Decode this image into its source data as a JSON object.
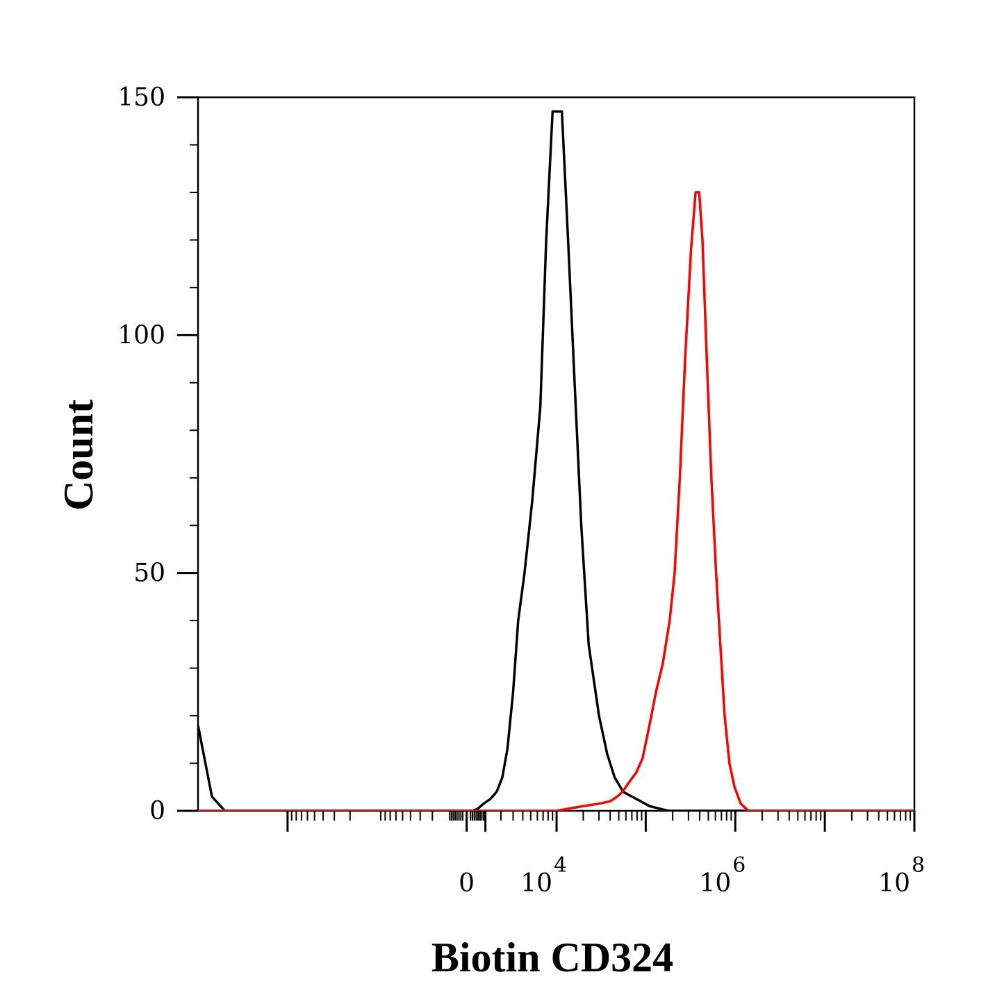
{
  "chart_data": {
    "type": "line",
    "title": "",
    "xlabel": "Biotin CD324",
    "ylabel": "Count",
    "x_scale": "biexponential",
    "x_ticks": [
      {
        "base": "0",
        "exp": ""
      },
      {
        "base": "10",
        "exp": "4"
      },
      {
        "base": "10",
        "exp": "6"
      },
      {
        "base": "10",
        "exp": "8"
      }
    ],
    "y_ticks": [
      "0",
      "50",
      "100",
      "150"
    ],
    "ylim": [
      0,
      150
    ],
    "grid": false,
    "legend": "none",
    "series": [
      {
        "color": "#000000",
        "points": [
          [
            -1000000,
            18
          ],
          [
            -700000,
            3
          ],
          [
            -500000,
            0
          ],
          [
            0,
            0
          ],
          [
            300,
            0
          ],
          [
            600,
            0.5
          ],
          [
            900,
            1.5
          ],
          [
            1300,
            2.5
          ],
          [
            1700,
            4
          ],
          [
            2100,
            7
          ],
          [
            2500,
            13
          ],
          [
            3000,
            25
          ],
          [
            3500,
            40
          ],
          [
            4200,
            50
          ],
          [
            5200,
            65
          ],
          [
            6500,
            85
          ],
          [
            7600,
            120
          ],
          [
            9000,
            147
          ],
          [
            11500,
            147
          ],
          [
            13500,
            120
          ],
          [
            16000,
            90
          ],
          [
            19000,
            60
          ],
          [
            23000,
            35
          ],
          [
            30000,
            20
          ],
          [
            37000,
            12
          ],
          [
            45000,
            7
          ],
          [
            56000,
            4
          ],
          [
            70000,
            3
          ],
          [
            88000,
            2
          ],
          [
            110000,
            1
          ],
          [
            140000,
            0.5
          ],
          [
            180000,
            0
          ],
          [
            500000,
            0
          ],
          [
            100000000,
            0
          ]
        ]
      },
      {
        "color": "#ff0000",
        "points": [
          [
            -1000000,
            0
          ],
          [
            0,
            0
          ],
          [
            10000,
            0
          ],
          [
            14000,
            0.5
          ],
          [
            20000,
            1
          ],
          [
            30000,
            1.5
          ],
          [
            40000,
            2
          ],
          [
            48000,
            3
          ],
          [
            55000,
            4
          ],
          [
            65000,
            6
          ],
          [
            78000,
            8
          ],
          [
            92000,
            11
          ],
          [
            110000,
            18
          ],
          [
            130000,
            25
          ],
          [
            155000,
            31
          ],
          [
            185000,
            40
          ],
          [
            210000,
            50
          ],
          [
            240000,
            70
          ],
          [
            275000,
            95
          ],
          [
            320000,
            118
          ],
          [
            360000,
            130
          ],
          [
            395000,
            130
          ],
          [
            430000,
            120
          ],
          [
            480000,
            95
          ],
          [
            540000,
            70
          ],
          [
            610000,
            50
          ],
          [
            680000,
            35
          ],
          [
            760000,
            20
          ],
          [
            860000,
            10
          ],
          [
            980000,
            5
          ],
          [
            1150000,
            1.5
          ],
          [
            1400000,
            0
          ],
          [
            2000000,
            0
          ],
          [
            100000000,
            0
          ]
        ]
      }
    ]
  }
}
